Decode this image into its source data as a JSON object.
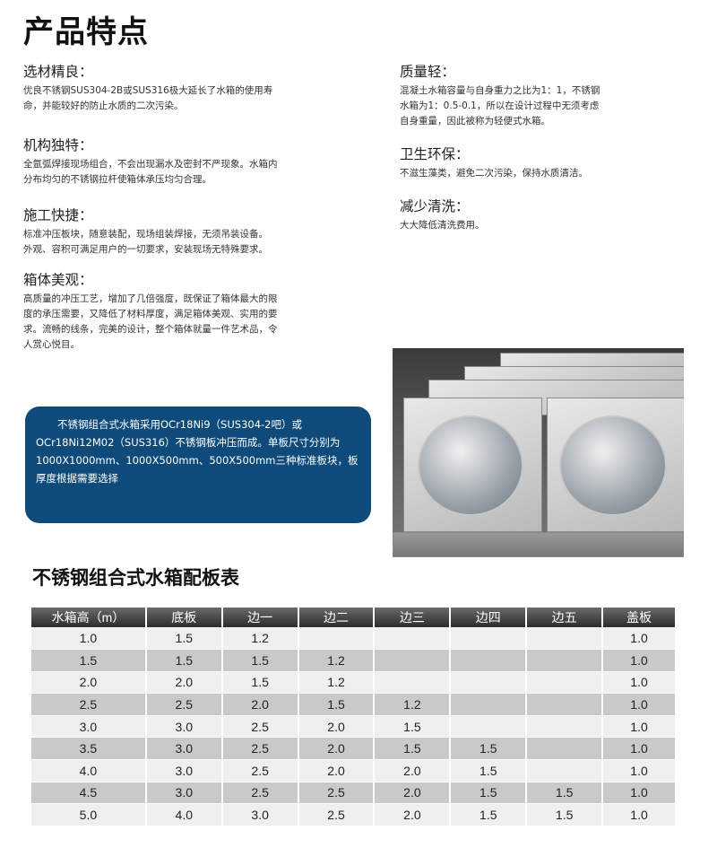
{
  "title": "产品特点",
  "features_left": [
    {
      "heading": "选材精良：",
      "lines": [
        "优良不锈钢SUS304-2B或SUS316极大延长了水箱的使用寿",
        "命，并能较好的防止水质的二次污染。"
      ]
    },
    {
      "heading": "机构独特：",
      "lines": [
        "全氩弧焊接现场组合，不会出现漏水及密封不严现象。水箱内",
        "分布均匀的不锈钢拉杆使箱体承压均匀合理。"
      ]
    },
    {
      "heading": "施工快捷：",
      "lines": [
        "标准冲压板块，随意装配，现场组装焊接，无须吊装设备。",
        "外观、容积可满足用户的一切要求，安装现场无特殊要求。"
      ]
    },
    {
      "heading": "箱体美观：",
      "lines": [
        "高质量的冲压工艺，增加了几倍强度，既保证了箱体最大的限",
        "度的承压需要，又降低了材料厚度，满足箱体美观、实用的要",
        "求。流畅的线条，完美的设计，整个箱体就量一件艺术品，令",
        "人赏心悦目。"
      ]
    }
  ],
  "features_right": [
    {
      "heading": "质量轻：",
      "lines": [
        "混凝土水箱容量与自身重力之比为1：1，不锈钢",
        "水箱为1：0.5-0.1，所以在设计过程中无须考虑",
        "自身重量，因此被称为轻便式水箱。"
      ]
    },
    {
      "heading": "卫生环保：",
      "lines": [
        "不滋生藻类，避免二次污染，保持水质清洁。"
      ]
    },
    {
      "heading": "减少清洗：",
      "lines": [
        "大大降低清洗费用。"
      ]
    }
  ],
  "info_box": "不锈钢组合式水箱采用OCr18Ni9（SUS304-2吧）或OCr18Ni12M02（SUS316）不锈钢板冲压而成。单板尺寸分别为1000X1000mm、1000X500mm、500X500mm三种标准板块，板厚度根据需要选择",
  "colors": {
    "info_box_bg": "#0e4a7a",
    "table_header": "#3a3a3a",
    "row_light": "#efefef",
    "row_dark": "#c9c9c9"
  },
  "table": {
    "title": "不锈钢组合式水箱配板表",
    "headers": [
      "水箱高（m）",
      "底板",
      "边一",
      "边二",
      "边三",
      "边四",
      "边五",
      "盖板"
    ],
    "rows": [
      [
        "1.0",
        "1.5",
        "1.2",
        "",
        "",
        "",
        "",
        "1.0"
      ],
      [
        "1.5",
        "1.5",
        "1.5",
        "1.2",
        "",
        "",
        "",
        "1.0"
      ],
      [
        "2.0",
        "2.0",
        "1.5",
        "1.2",
        "",
        "",
        "",
        "1.0"
      ],
      [
        "2.5",
        "2.5",
        "2.0",
        "1.5",
        "1.2",
        "",
        "",
        "1.0"
      ],
      [
        "3.0",
        "3.0",
        "2.5",
        "2.0",
        "1.5",
        "",
        "",
        "1.0"
      ],
      [
        "3.5",
        "3.0",
        "2.5",
        "2.0",
        "1.5",
        "1.5",
        "",
        "1.0"
      ],
      [
        "4.0",
        "3.0",
        "2.5",
        "2.0",
        "2.0",
        "1.5",
        "",
        "1.0"
      ],
      [
        "4.5",
        "3.0",
        "2.5",
        "2.5",
        "2.0",
        "1.5",
        "1.5",
        "1.0"
      ],
      [
        "5.0",
        "4.0",
        "3.0",
        "2.5",
        "2.0",
        "1.5",
        "1.5",
        "1.0"
      ]
    ]
  }
}
